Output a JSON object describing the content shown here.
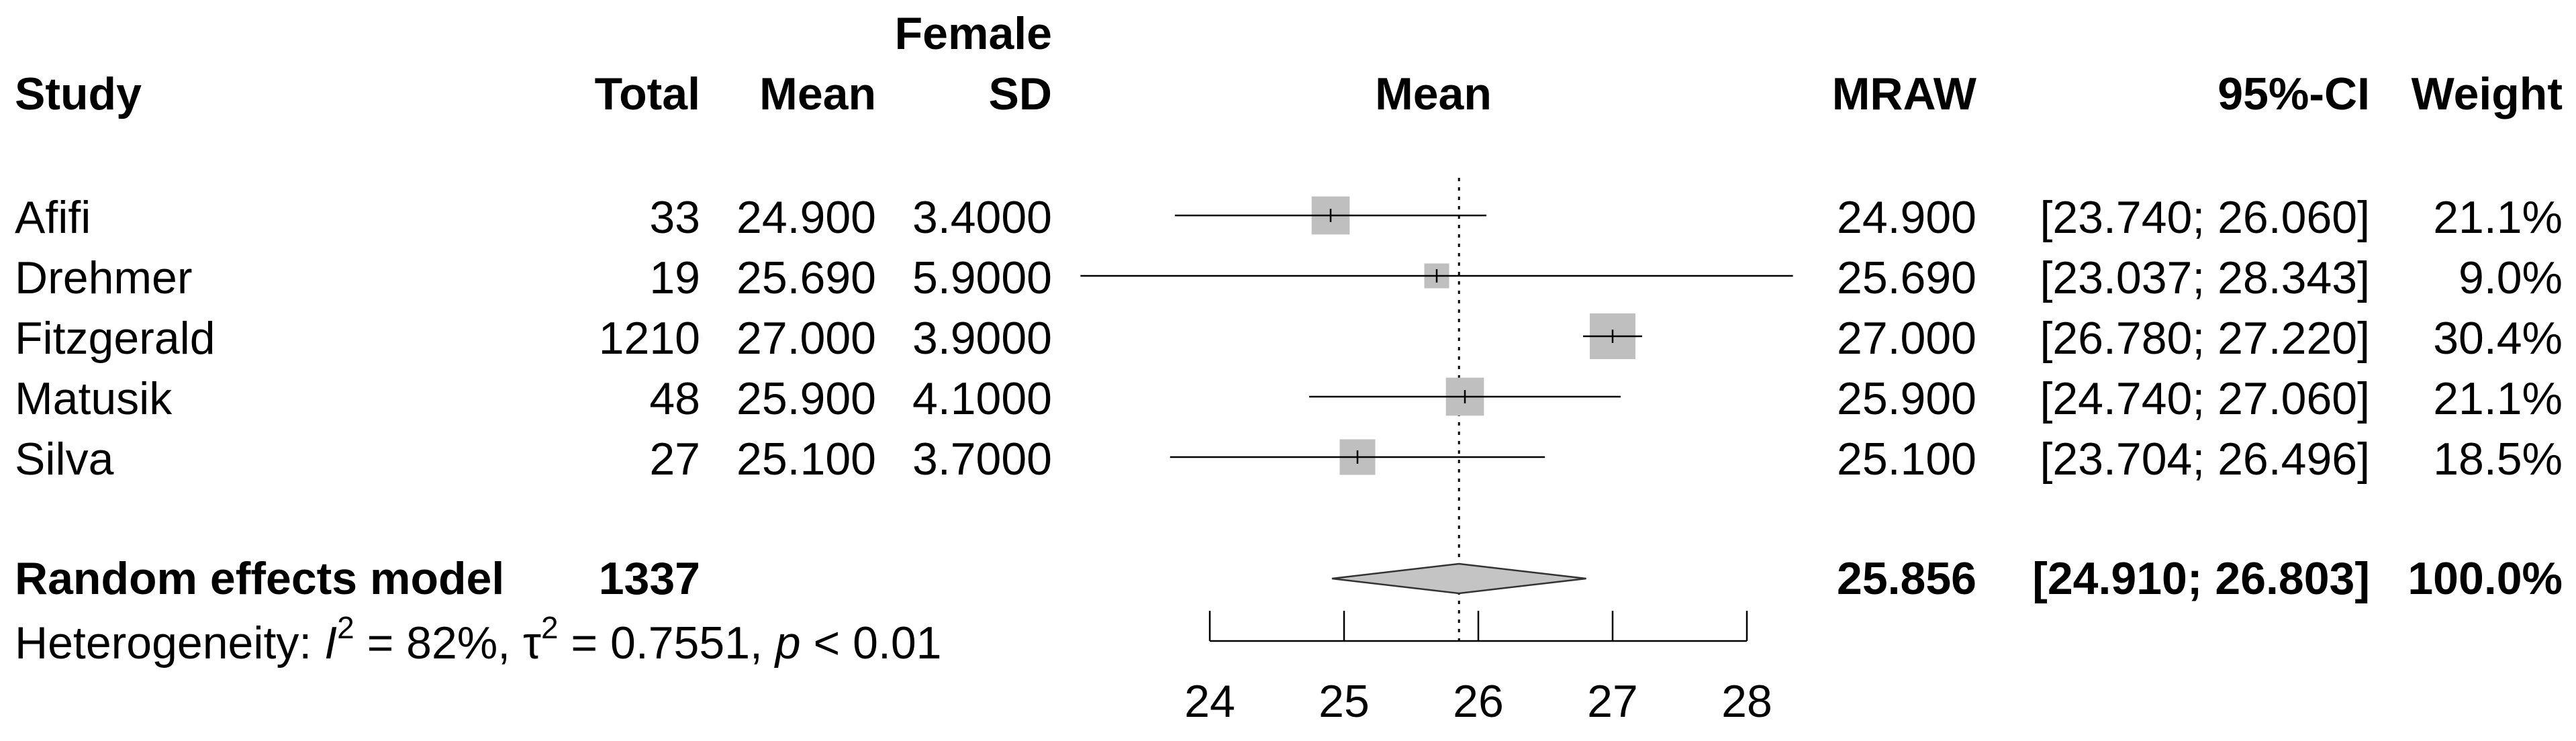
{
  "chart_data": {
    "type": "forest",
    "group_label": "Female",
    "headers": {
      "study": "Study",
      "total": "Total",
      "mean": "Mean",
      "sd": "SD",
      "plot": "Mean",
      "mraw": "MRAW",
      "ci": "95%-CI",
      "weight": "Weight"
    },
    "studies": [
      {
        "name": "Afifi",
        "total": "33",
        "mean": "24.900",
        "sd": "3.4000",
        "mraw": "24.900",
        "ci": "[23.740; 26.060]",
        "weight": "21.1%",
        "est": 24.9,
        "lower": 23.74,
        "upper": 26.06,
        "w": 21.1
      },
      {
        "name": "Drehmer",
        "total": "19",
        "mean": "25.690",
        "sd": "5.9000",
        "mraw": "25.690",
        "ci": "[23.037; 28.343]",
        "weight": "9.0%",
        "est": 25.69,
        "lower": 23.037,
        "upper": 28.343,
        "w": 9.0
      },
      {
        "name": "Fitzgerald",
        "total": "1210",
        "mean": "27.000",
        "sd": "3.9000",
        "mraw": "27.000",
        "ci": "[26.780; 27.220]",
        "weight": "30.4%",
        "est": 27.0,
        "lower": 26.78,
        "upper": 27.22,
        "w": 30.4
      },
      {
        "name": "Matusik",
        "total": "48",
        "mean": "25.900",
        "sd": "4.1000",
        "mraw": "25.900",
        "ci": "[24.740; 27.060]",
        "weight": "21.1%",
        "est": 25.9,
        "lower": 24.74,
        "upper": 27.06,
        "w": 21.1
      },
      {
        "name": "Silva",
        "total": "27",
        "mean": "25.100",
        "sd": "3.7000",
        "mraw": "25.100",
        "ci": "[23.704; 26.496]",
        "weight": "18.5%",
        "est": 25.1,
        "lower": 23.704,
        "upper": 26.496,
        "w": 18.5
      }
    ],
    "pooled": {
      "label": "Random effects model",
      "total": "1337",
      "mraw": "25.856",
      "ci": "[24.910; 26.803]",
      "weight": "100.0%",
      "est": 25.856,
      "lower": 24.91,
      "upper": 26.803
    },
    "heterogeneity": {
      "prefix": "Heterogeneity: ",
      "i_symbol": "I",
      "i_exp": "2",
      "i_value": " = 82%, ",
      "tau_symbol": "τ",
      "tau_exp": "2",
      "tau_value": " = 0.7551, ",
      "p_symbol": "p",
      "p_value": " < 0.01"
    },
    "xaxis": {
      "range": [
        24,
        28
      ],
      "ticks": [
        24,
        25,
        26,
        27,
        28
      ],
      "tick_labels": [
        "24",
        "25",
        "26",
        "27",
        "28"
      ]
    }
  }
}
